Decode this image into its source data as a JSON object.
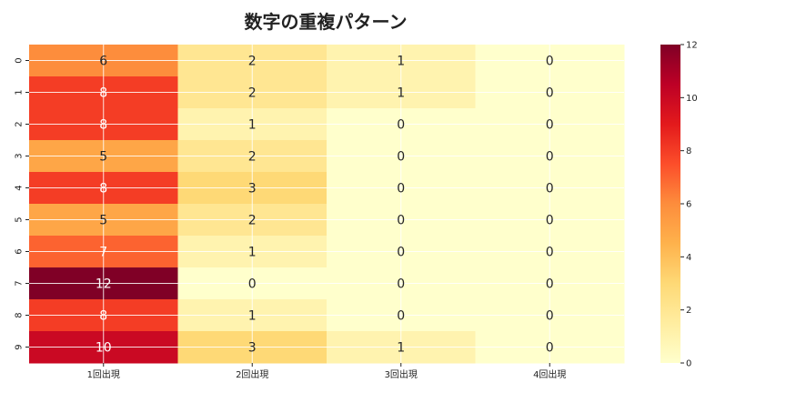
{
  "chart_data": {
    "type": "heatmap",
    "title": "数字の重複パターン",
    "xlabel": "",
    "ylabel": "",
    "x_categories": [
      "1回出現",
      "2回出現",
      "3回出現",
      "4回出現"
    ],
    "y_categories": [
      "0",
      "1",
      "2",
      "3",
      "4",
      "5",
      "6",
      "7",
      "8",
      "9"
    ],
    "values": [
      [
        6,
        2,
        1,
        0
      ],
      [
        8,
        2,
        1,
        0
      ],
      [
        8,
        1,
        0,
        0
      ],
      [
        5,
        2,
        0,
        0
      ],
      [
        8,
        3,
        0,
        0
      ],
      [
        5,
        2,
        0,
        0
      ],
      [
        7,
        1,
        0,
        0
      ],
      [
        12,
        0,
        0,
        0
      ],
      [
        8,
        1,
        0,
        0
      ],
      [
        10,
        3,
        1,
        0
      ]
    ],
    "colormap": "YlOrRd",
    "vmin": 0,
    "vmax": 12,
    "colorbar_ticks": [
      0,
      2,
      4,
      6,
      8,
      10,
      12
    ],
    "annotations": true,
    "grid": true
  }
}
